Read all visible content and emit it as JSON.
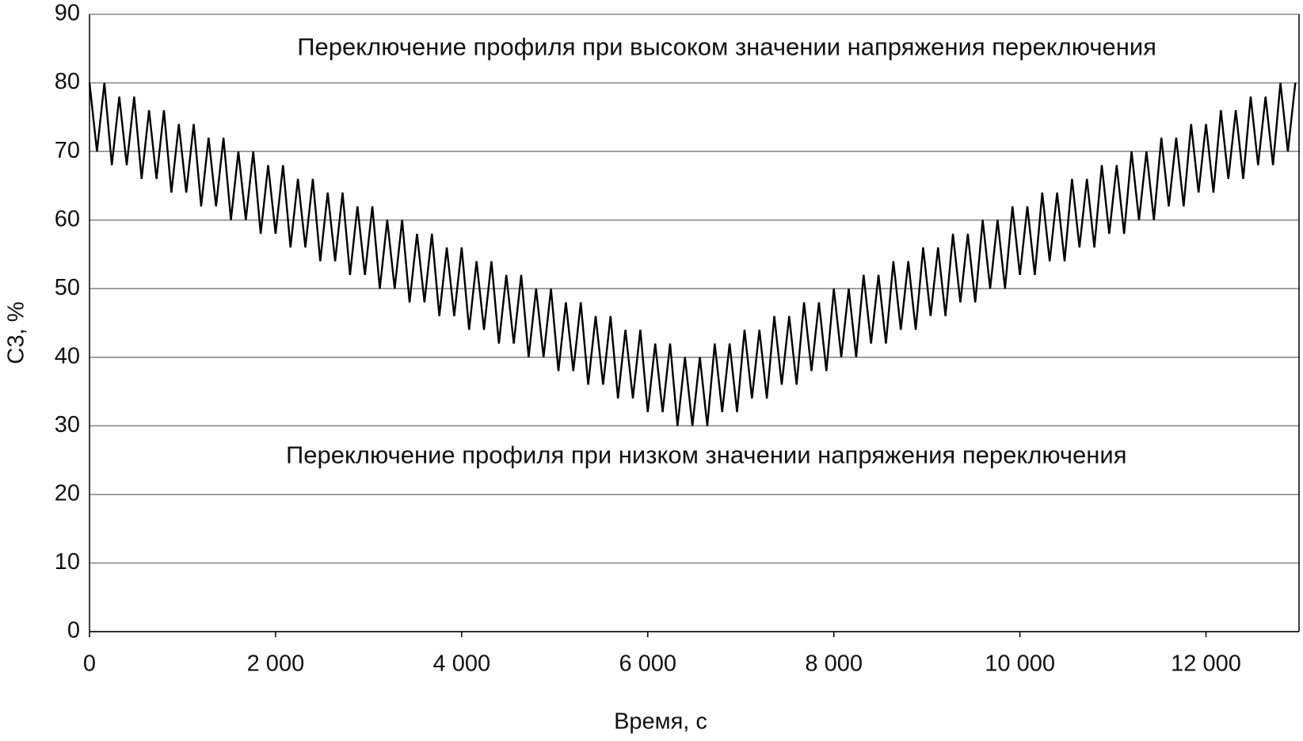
{
  "chart_data": {
    "type": "line",
    "x_label": "Время, с",
    "y_label": "С3, %",
    "annotations": [
      {
        "text": "Переключение профиля при высоком значении напряжения переключения",
        "x": 6850,
        "y": 85
      },
      {
        "text": "Переключение профиля при низком значении напряжения переключения",
        "x": 6630,
        "y": 25.5
      }
    ],
    "xlim": [
      0,
      13000
    ],
    "ylim": [
      0,
      90
    ],
    "xticks": [
      0,
      {
        "value": 2000,
        "label": "2 000"
      },
      {
        "value": 4000,
        "label": "4 000"
      },
      {
        "value": 6000,
        "label": "6 000"
      },
      {
        "value": 8000,
        "label": "8 000"
      },
      {
        "value": 10000,
        "label": "10 000"
      },
      {
        "value": 12000,
        "label": "12 000"
      }
    ],
    "yticks": [
      0,
      10,
      20,
      30,
      40,
      50,
      60,
      70,
      80,
      90
    ],
    "grid": true,
    "x": [
      0,
      80,
      160,
      240,
      320,
      400,
      480,
      560,
      640,
      720,
      800,
      880,
      960,
      1040,
      1120,
      1200,
      1280,
      1360,
      1440,
      1520,
      1600,
      1680,
      1760,
      1840,
      1920,
      2000,
      2080,
      2160,
      2240,
      2320,
      2400,
      2480,
      2560,
      2640,
      2720,
      2800,
      2880,
      2960,
      3040,
      3120,
      3200,
      3280,
      3360,
      3440,
      3520,
      3600,
      3680,
      3760,
      3840,
      3920,
      4000,
      4080,
      4160,
      4240,
      4320,
      4400,
      4480,
      4560,
      4640,
      4720,
      4800,
      4880,
      4960,
      5040,
      5120,
      5200,
      5280,
      5360,
      5440,
      5520,
      5600,
      5680,
      5760,
      5840,
      5920,
      6000,
      6080,
      6160,
      6240,
      6320,
      6400,
      6480,
      6560,
      6640,
      6720,
      6800,
      6880,
      6960,
      7040,
      7120,
      7200,
      7280,
      7360,
      7440,
      7520,
      7600,
      7680,
      7760,
      7840,
      7920,
      8000,
      8080,
      8160,
      8240,
      8320,
      8400,
      8480,
      8560,
      8640,
      8720,
      8800,
      8880,
      8960,
      9040,
      9120,
      9200,
      9280,
      9360,
      9440,
      9520,
      9600,
      9680,
      9760,
      9840,
      9920,
      10000,
      10080,
      10160,
      10240,
      10320,
      10400,
      10480,
      10560,
      10640,
      10720,
      10800,
      10880,
      10960,
      11040,
      11120,
      11200,
      11280,
      11360,
      11440,
      11520,
      11600,
      11680,
      11760,
      11840,
      11920,
      12000,
      12080,
      12160,
      12240,
      12320,
      12400,
      12480,
      12560,
      12640,
      12720,
      12800,
      12880,
      12960
    ],
    "series": [
      {
        "color": "#000000",
        "values": [
          80,
          70,
          80,
          68,
          78,
          68,
          78,
          66,
          76,
          66,
          76,
          64,
          74,
          64,
          74,
          62,
          72,
          62,
          72,
          60,
          70,
          60,
          70,
          58,
          68,
          58,
          68,
          56,
          66,
          56,
          66,
          54,
          64,
          54,
          64,
          52,
          62,
          52,
          62,
          50,
          60,
          50,
          60,
          48,
          58,
          48,
          58,
          46,
          56,
          46,
          56,
          44,
          54,
          44,
          54,
          42,
          52,
          42,
          52,
          40,
          50,
          40,
          50,
          38,
          48,
          38,
          48,
          36,
          46,
          36,
          46,
          34,
          44,
          34,
          44,
          32,
          42,
          32,
          42,
          30,
          40,
          30,
          40,
          30,
          42,
          32,
          42,
          32,
          44,
          34,
          44,
          34,
          46,
          36,
          46,
          36,
          48,
          38,
          48,
          38,
          50,
          40,
          50,
          40,
          52,
          42,
          52,
          42,
          54,
          44,
          54,
          44,
          56,
          46,
          56,
          46,
          58,
          48,
          58,
          48,
          60,
          50,
          60,
          50,
          62,
          52,
          62,
          52,
          64,
          54,
          64,
          54,
          66,
          56,
          66,
          56,
          68,
          58,
          68,
          58,
          70,
          60,
          70,
          60,
          72,
          62,
          72,
          62,
          74,
          64,
          74,
          64,
          76,
          66,
          76,
          66,
          78,
          68,
          78,
          68,
          80,
          70,
          80
        ]
      }
    ]
  }
}
